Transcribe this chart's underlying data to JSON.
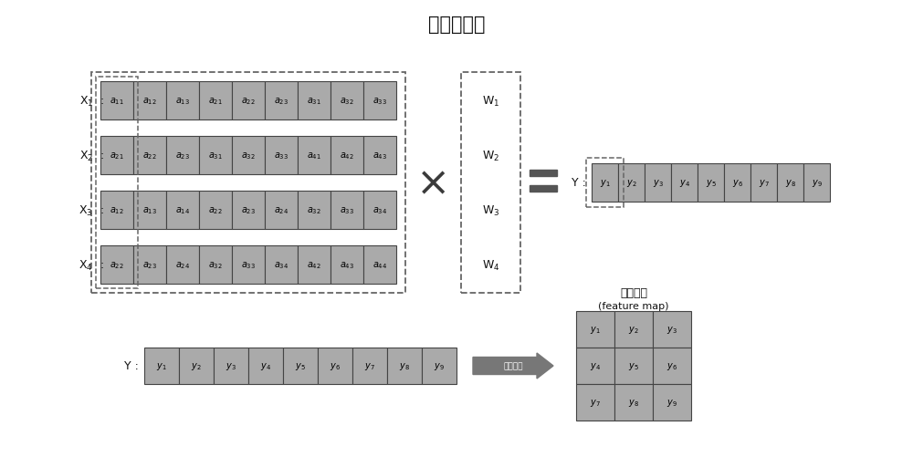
{
  "title": "卷积层处理",
  "title_fontsize": 15,
  "bg_color": "#ffffff",
  "cell_color": "#aaaaaa",
  "cell_edge_color": "#444444",
  "rows_X": [
    {
      "label": "X$_1$",
      "cells": [
        "$a_{11}$",
        "$a_{12}$",
        "$a_{13}$",
        "$a_{21}$",
        "$a_{22}$",
        "$a_{23}$",
        "$a_{31}$",
        "$a_{32}$",
        "$a_{33}$"
      ]
    },
    {
      "label": "X$_2$",
      "cells": [
        "$a_{21}$",
        "$a_{22}$",
        "$a_{23}$",
        "$a_{31}$",
        "$a_{32}$",
        "$a_{33}$",
        "$a_{41}$",
        "$a_{42}$",
        "$a_{43}$"
      ]
    },
    {
      "label": "X$_3$",
      "cells": [
        "$a_{12}$",
        "$a_{13}$",
        "$a_{14}$",
        "$a_{22}$",
        "$a_{23}$",
        "$a_{24}$",
        "$a_{32}$",
        "$a_{33}$",
        "$a_{34}$"
      ]
    },
    {
      "label": "X$_4$",
      "cells": [
        "$a_{22}$",
        "$a_{23}$",
        "$a_{24}$",
        "$a_{32}$",
        "$a_{33}$",
        "$a_{34}$",
        "$a_{42}$",
        "$a_{43}$",
        "$a_{44}$"
      ]
    }
  ],
  "weights": [
    "W$_1$",
    "W$_2$",
    "W$_3$",
    "W$_4$"
  ],
  "Y_row_cells": [
    "$y_1$",
    "$y_2$",
    "$y_3$",
    "$y_4$",
    "$y_5$",
    "$y_6$",
    "$y_7$",
    "$y_8$",
    "$y_9$"
  ],
  "Y_bottom_cells": [
    "$y_1$",
    "$y_2$",
    "$y_3$",
    "$y_4$",
    "$y_5$",
    "$y_6$",
    "$y_7$",
    "$y_8$",
    "$y_9$"
  ],
  "feature_map_cells": [
    [
      "$y_1$",
      "$y_2$",
      "$y_3$"
    ],
    [
      "$y_4$",
      "$y_5$",
      "$y_6$"
    ],
    [
      "$y_7$",
      "$y_8$",
      "$y_9$"
    ]
  ],
  "arrow_label": "重新排列",
  "feature_map_title_line1": "特征图谱",
  "feature_map_title_line2": "(feature map)",
  "dashed_box_color": "#666666",
  "text_color": "#111111"
}
